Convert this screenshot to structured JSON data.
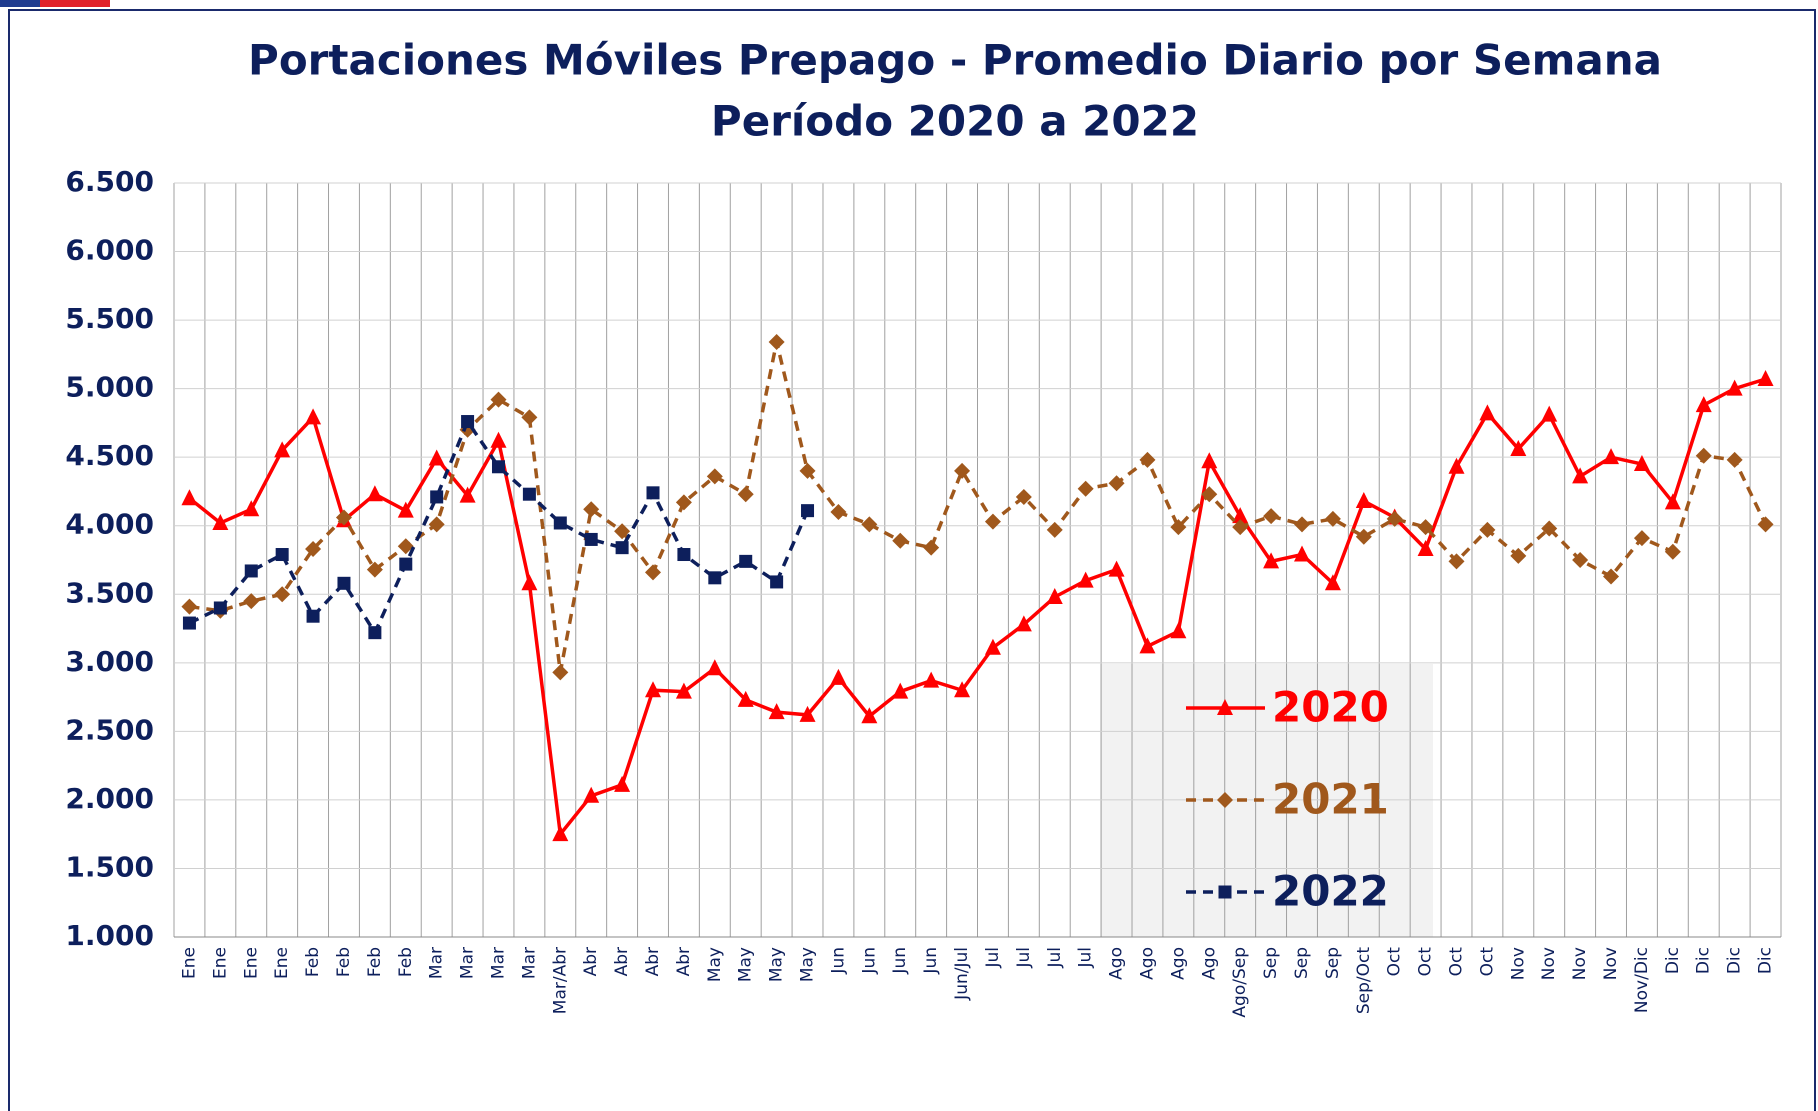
{
  "chart_data": {
    "type": "line",
    "title": "Portaciones Móviles Prepago - Promedio Diario por Semana",
    "subtitle": "Período 2020 a 2022",
    "categories": [
      "Ene",
      "Ene",
      "Ene",
      "Ene",
      "Feb",
      "Feb",
      "Feb",
      "Feb",
      "Mar",
      "Mar",
      "Mar",
      "Mar",
      "Mar/Abr",
      "Abr",
      "Abr",
      "Abr",
      "Abr",
      "May",
      "May",
      "May",
      "May",
      "Jun",
      "Jun",
      "Jun",
      "Jun",
      "Jun/Jul",
      "Jul",
      "Jul",
      "Jul",
      "Jul",
      "Ago",
      "Ago",
      "Ago",
      "Ago",
      "Ago/Sep",
      "Sep",
      "Sep",
      "Sep",
      "Sep/Oct",
      "Oct",
      "Oct",
      "Oct",
      "Oct",
      "Nov",
      "Nov",
      "Nov",
      "Nov",
      "Nov/Dic",
      "Dic",
      "Dic",
      "Dic",
      "Dic"
    ],
    "series": [
      {
        "name": "2020",
        "color": "#ff0000",
        "marker": "triangle",
        "dashed": false,
        "values": [
          4200,
          4020,
          4120,
          4550,
          4790,
          4040,
          4230,
          4110,
          4490,
          4220,
          4620,
          3580,
          1750,
          2030,
          2110,
          2800,
          2790,
          2960,
          2730,
          2640,
          2620,
          2890,
          2610,
          2790,
          2870,
          2800,
          3110,
          3280,
          3480,
          3600,
          3680,
          3120,
          3230,
          4470,
          4070,
          3740,
          3790,
          3580,
          4180,
          4060,
          3830,
          4430,
          4820,
          4560,
          4810,
          4360,
          4500,
          4450,
          4170,
          4880,
          5000,
          5070
        ]
      },
      {
        "name": "2021",
        "color": "#a0581c",
        "marker": "diamond",
        "dashed": true,
        "values": [
          3410,
          3380,
          3450,
          3500,
          3830,
          4060,
          3680,
          3850,
          4010,
          4700,
          4920,
          4790,
          2930,
          4120,
          3960,
          3660,
          4170,
          4360,
          4230,
          5340,
          4400,
          4100,
          4010,
          3890,
          3840,
          4400,
          4030,
          4210,
          3970,
          4270,
          4310,
          4480,
          3990,
          4230,
          3990,
          4070,
          4010,
          4050,
          3920,
          4050,
          3990,
          3740,
          3970,
          3780,
          3980,
          3750,
          3630,
          3910,
          3810,
          4510,
          4480,
          4010
        ]
      },
      {
        "name": "2022",
        "color": "#0d1f5c",
        "marker": "square",
        "dashed": true,
        "values": [
          3290,
          3400,
          3670,
          3790,
          3340,
          3580,
          3220,
          3720,
          4210,
          4760,
          4430,
          4230,
          4020,
          3900,
          3840,
          4240,
          3790,
          3620,
          3740,
          3590,
          4110,
          null,
          null,
          null,
          null,
          null,
          null,
          null,
          null,
          null,
          null,
          null,
          null,
          null,
          null,
          null,
          null,
          null,
          null,
          null,
          null,
          null,
          null,
          null,
          null,
          null,
          null,
          null,
          null,
          null,
          null,
          null
        ]
      }
    ],
    "ylim": [
      1000,
      6500
    ],
    "yticks": [
      {
        "value": 1000,
        "label": "1.000"
      },
      {
        "value": 1500,
        "label": "1.500"
      },
      {
        "value": 2000,
        "label": "2.000"
      },
      {
        "value": 2500,
        "label": "2.500"
      },
      {
        "value": 3000,
        "label": "3.000"
      },
      {
        "value": 3500,
        "label": "3.500"
      },
      {
        "value": 4000,
        "label": "4.000"
      },
      {
        "value": 4500,
        "label": "4.500"
      },
      {
        "value": 5000,
        "label": "5.000"
      },
      {
        "value": 5500,
        "label": "5.500"
      },
      {
        "value": 6000,
        "label": "6.000"
      },
      {
        "value": 6500,
        "label": "6.500"
      }
    ],
    "grid": true
  }
}
